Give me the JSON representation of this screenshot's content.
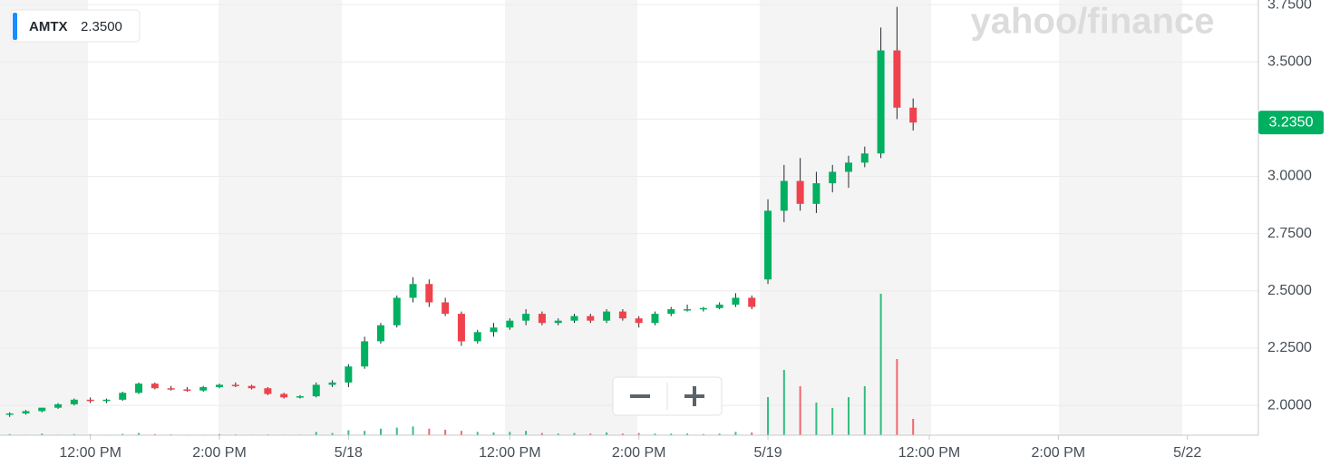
{
  "chart_data": {
    "type": "candlestick",
    "symbol": "AMTX",
    "legend_value": "2.3500",
    "brand": "yahoo/finance",
    "up_color": "#00b061",
    "down_color": "#f0424c",
    "last_price": {
      "value": 3.235,
      "label": "3.2350"
    },
    "xlim": [
      1.1,
      20.6
    ],
    "xticks": [
      {
        "value": 2.5,
        "label": "12:00 PM"
      },
      {
        "value": 4.5,
        "label": "2:00 PM"
      },
      {
        "value": 6.5,
        "label": "5/18"
      },
      {
        "value": 9,
        "label": "12:00 PM"
      },
      {
        "value": 11,
        "label": "2:00 PM"
      },
      {
        "value": 13,
        "label": "5/19"
      },
      {
        "value": 15.5,
        "label": "12:00 PM"
      },
      {
        "value": 17.5,
        "label": "2:00 PM"
      },
      {
        "value": 19.5,
        "label": "5/22"
      }
    ],
    "ylim": [
      1.87,
      3.77
    ],
    "yticks": [
      {
        "value": 2,
        "label": "2.0000"
      },
      {
        "value": 2.25,
        "label": "2.2500"
      },
      {
        "value": 2.5,
        "label": "2.5000"
      },
      {
        "value": 2.75,
        "label": "2.7500"
      },
      {
        "value": 3,
        "label": "3.0000"
      },
      {
        "value": 3.25,
        "label": "3.2500"
      },
      {
        "value": 3.5,
        "label": "3.5000"
      },
      {
        "value": 3.75,
        "label": "3.7500"
      }
    ],
    "y2lim": [
      0,
      8000
    ],
    "grid": true,
    "x": [
      1.25,
      1.5,
      1.75,
      2,
      2.25,
      2.5,
      2.75,
      3,
      3.25,
      3.5,
      3.75,
      4,
      4.25,
      4.5,
      4.75,
      5,
      5.25,
      5.5,
      5.75,
      6,
      6.25,
      6.5,
      6.75,
      7,
      7.25,
      7.5,
      7.75,
      8,
      8.25,
      8.5,
      8.75,
      9,
      9.25,
      9.5,
      9.75,
      10,
      10.25,
      10.5,
      10.75,
      11,
      11.25,
      11.5,
      11.75,
      12,
      12.25,
      12.5,
      12.75,
      13,
      13.25,
      13.5,
      13.75,
      14,
      14.25,
      14.5,
      14.75,
      15,
      15.25
    ],
    "open": [
      1.96,
      1.965,
      1.975,
      1.99,
      2.005,
      2.025,
      2.02,
      2.025,
      2.055,
      2.095,
      2.075,
      2.07,
      2.065,
      2.08,
      2.09,
      2.085,
      2.075,
      2.05,
      2.035,
      2.04,
      2.09,
      2.1,
      2.17,
      2.28,
      2.35,
      2.47,
      2.53,
      2.45,
      2.4,
      2.28,
      2.32,
      2.34,
      2.37,
      2.4,
      2.36,
      2.37,
      2.39,
      2.37,
      2.41,
      2.38,
      2.36,
      2.4,
      2.42,
      2.42,
      2.425,
      2.44,
      2.47,
      2.55,
      2.85,
      2.98,
      2.88,
      2.97,
      3.02,
      3.06,
      3.1,
      3.55,
      3.3
    ],
    "high": [
      1.97,
      1.98,
      1.99,
      2.01,
      2.03,
      2.035,
      2.03,
      2.06,
      2.1,
      2.1,
      2.085,
      2.08,
      2.085,
      2.095,
      2.1,
      2.09,
      2.08,
      2.055,
      2.045,
      2.1,
      2.11,
      2.18,
      2.3,
      2.36,
      2.48,
      2.56,
      2.55,
      2.47,
      2.41,
      2.33,
      2.36,
      2.38,
      2.42,
      2.41,
      2.38,
      2.4,
      2.4,
      2.42,
      2.42,
      2.39,
      2.41,
      2.43,
      2.44,
      2.43,
      2.45,
      2.49,
      2.48,
      2.9,
      3.05,
      3.08,
      3.02,
      3.05,
      3.09,
      3.13,
      3.65,
      3.74,
      3.34
    ],
    "low": [
      1.95,
      1.96,
      1.97,
      1.985,
      2,
      2.01,
      2.01,
      2.02,
      2.05,
      2.07,
      2.065,
      2.06,
      2.06,
      2.075,
      2.08,
      2.07,
      2.045,
      2.03,
      2.03,
      2.035,
      2.08,
      2.08,
      2.16,
      2.27,
      2.34,
      2.45,
      2.43,
      2.39,
      2.26,
      2.27,
      2.3,
      2.33,
      2.35,
      2.35,
      2.35,
      2.36,
      2.36,
      2.36,
      2.37,
      2.34,
      2.35,
      2.39,
      2.41,
      2.41,
      2.42,
      2.43,
      2.42,
      2.53,
      2.8,
      2.85,
      2.84,
      2.93,
      2.95,
      3.04,
      3.08,
      3.25,
      3.2
    ],
    "close": [
      1.965,
      1.975,
      1.99,
      2.005,
      2.025,
      2.02,
      2.025,
      2.055,
      2.095,
      2.075,
      2.07,
      2.065,
      2.08,
      2.09,
      2.085,
      2.075,
      2.05,
      2.035,
      2.04,
      2.09,
      2.1,
      2.17,
      2.28,
      2.35,
      2.47,
      2.53,
      2.45,
      2.4,
      2.28,
      2.32,
      2.34,
      2.37,
      2.4,
      2.36,
      2.37,
      2.39,
      2.37,
      2.41,
      2.38,
      2.36,
      2.4,
      2.42,
      2.42,
      2.425,
      2.44,
      2.47,
      2.43,
      2.85,
      2.98,
      2.88,
      2.97,
      3.02,
      3.06,
      3.1,
      3.55,
      3.3,
      3.235
    ],
    "volume": [
      20,
      10,
      30,
      10,
      20,
      15,
      10,
      25,
      40,
      20,
      15,
      10,
      10,
      20,
      15,
      10,
      15,
      10,
      10,
      60,
      40,
      90,
      80,
      120,
      140,
      160,
      120,
      100,
      80,
      60,
      50,
      60,
      80,
      40,
      30,
      40,
      30,
      50,
      30,
      40,
      30,
      30,
      30,
      20,
      30,
      60,
      50,
      700,
      1200,
      900,
      600,
      500,
      700,
      900,
      2600,
      1400,
      300
    ]
  }
}
